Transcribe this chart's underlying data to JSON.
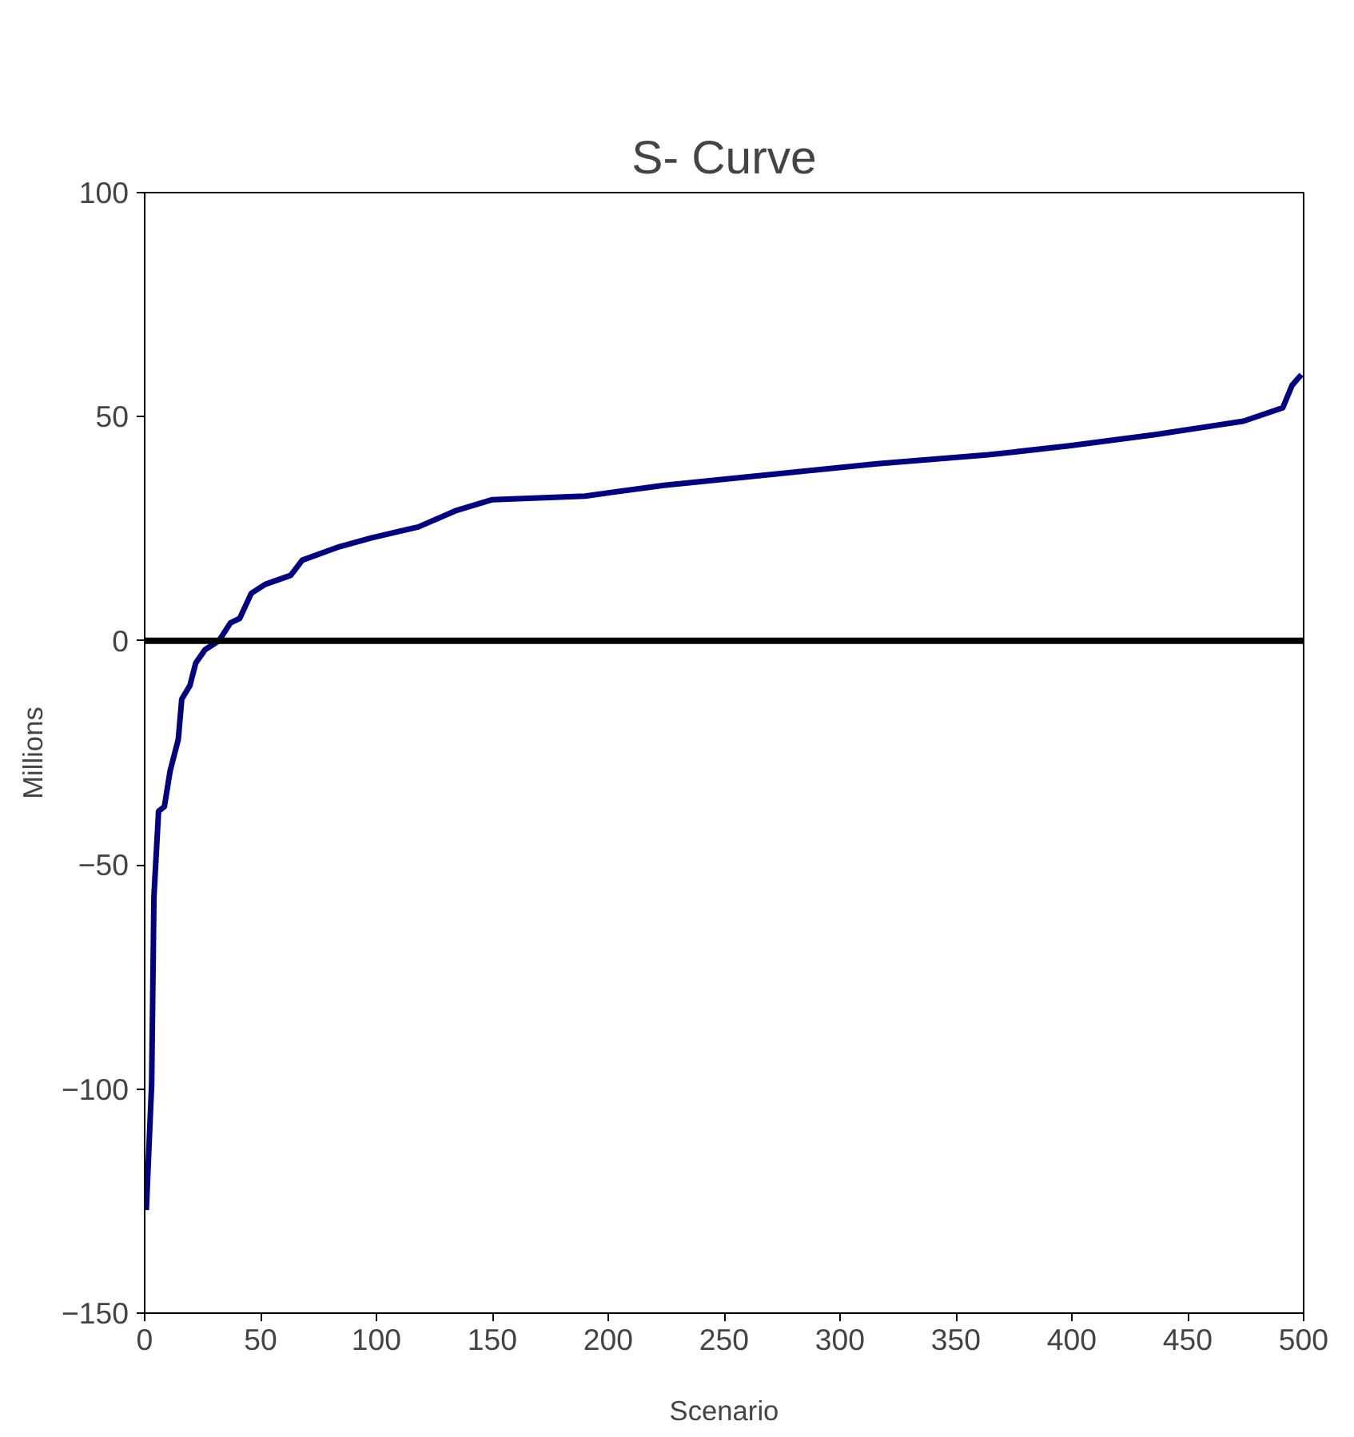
{
  "chart_data": {
    "type": "line",
    "title": "S- Curve",
    "xlabel": "Scenario",
    "ylabel": "Millions",
    "x": [
      0.7,
      3,
      4,
      6,
      8.5,
      11,
      14.5,
      16,
      19.5,
      22,
      26,
      32,
      37,
      41,
      46,
      52,
      63,
      68,
      84,
      98,
      118,
      134,
      150,
      190,
      224,
      270,
      316,
      364,
      399,
      436,
      474,
      491,
      495,
      499
    ],
    "series": [
      {
        "color": "#000080",
        "values": [
          -127,
          -99,
          -57,
          -38,
          -37,
          -29,
          -22,
          -13,
          -10,
          -5,
          -2,
          0,
          4,
          5,
          10.6,
          12.6,
          14.6,
          18,
          21,
          23,
          25.4,
          29,
          31.5,
          32.3,
          34.7,
          37.1,
          39.5,
          41.5,
          43.5,
          46,
          49,
          52,
          57,
          59.4
        ]
      }
    ],
    "xlim": [
      0,
      500
    ],
    "ylim": [
      -150,
      100
    ],
    "xticks": [
      0,
      50,
      100,
      150,
      200,
      250,
      300,
      350,
      400,
      450,
      500
    ],
    "yticks": [
      -150,
      -100,
      -50,
      0,
      50,
      100
    ],
    "ref_lines": [
      {
        "axis": "y",
        "value": 0,
        "color": "#000000"
      }
    ],
    "grid": false,
    "marker": "none",
    "line_style": "solid"
  }
}
